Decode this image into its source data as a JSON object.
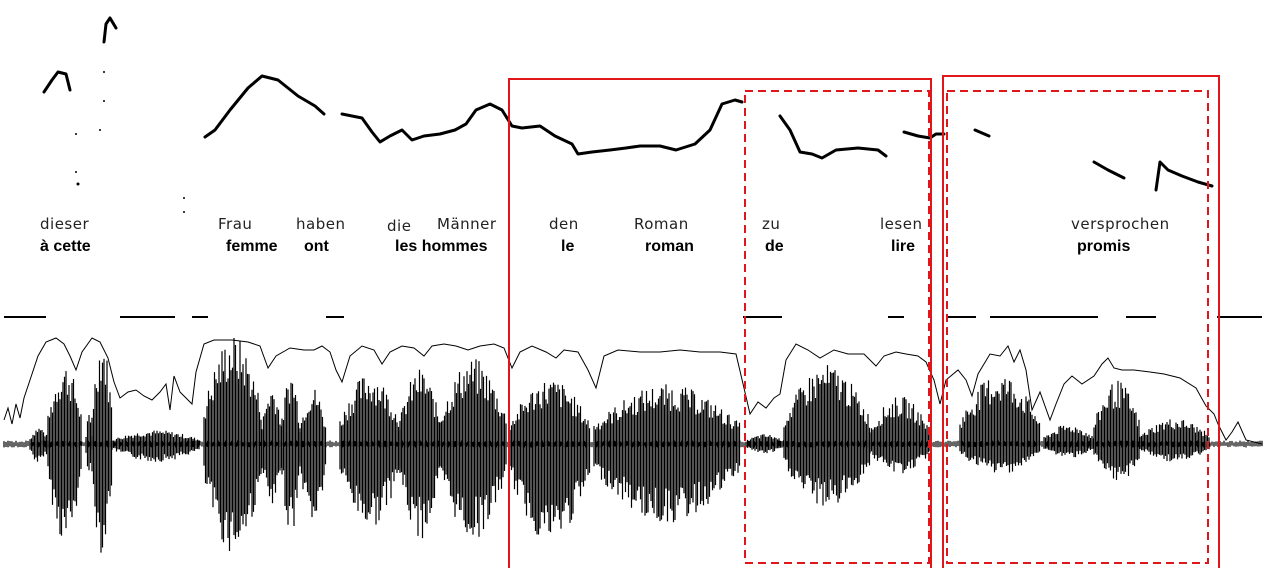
{
  "german_words": [
    "dieser",
    "Frau",
    "haben",
    "die",
    "Männer",
    "den",
    "Roman",
    "zu",
    "lesen",
    "versprochen"
  ],
  "french_words": [
    "à cette",
    "femme",
    "ont",
    "les hommes",
    "le",
    "roman",
    "de",
    "lire",
    "promis"
  ],
  "colors": {
    "box": "#e0161b",
    "trace": "#000000",
    "background": "#ffffff"
  }
}
